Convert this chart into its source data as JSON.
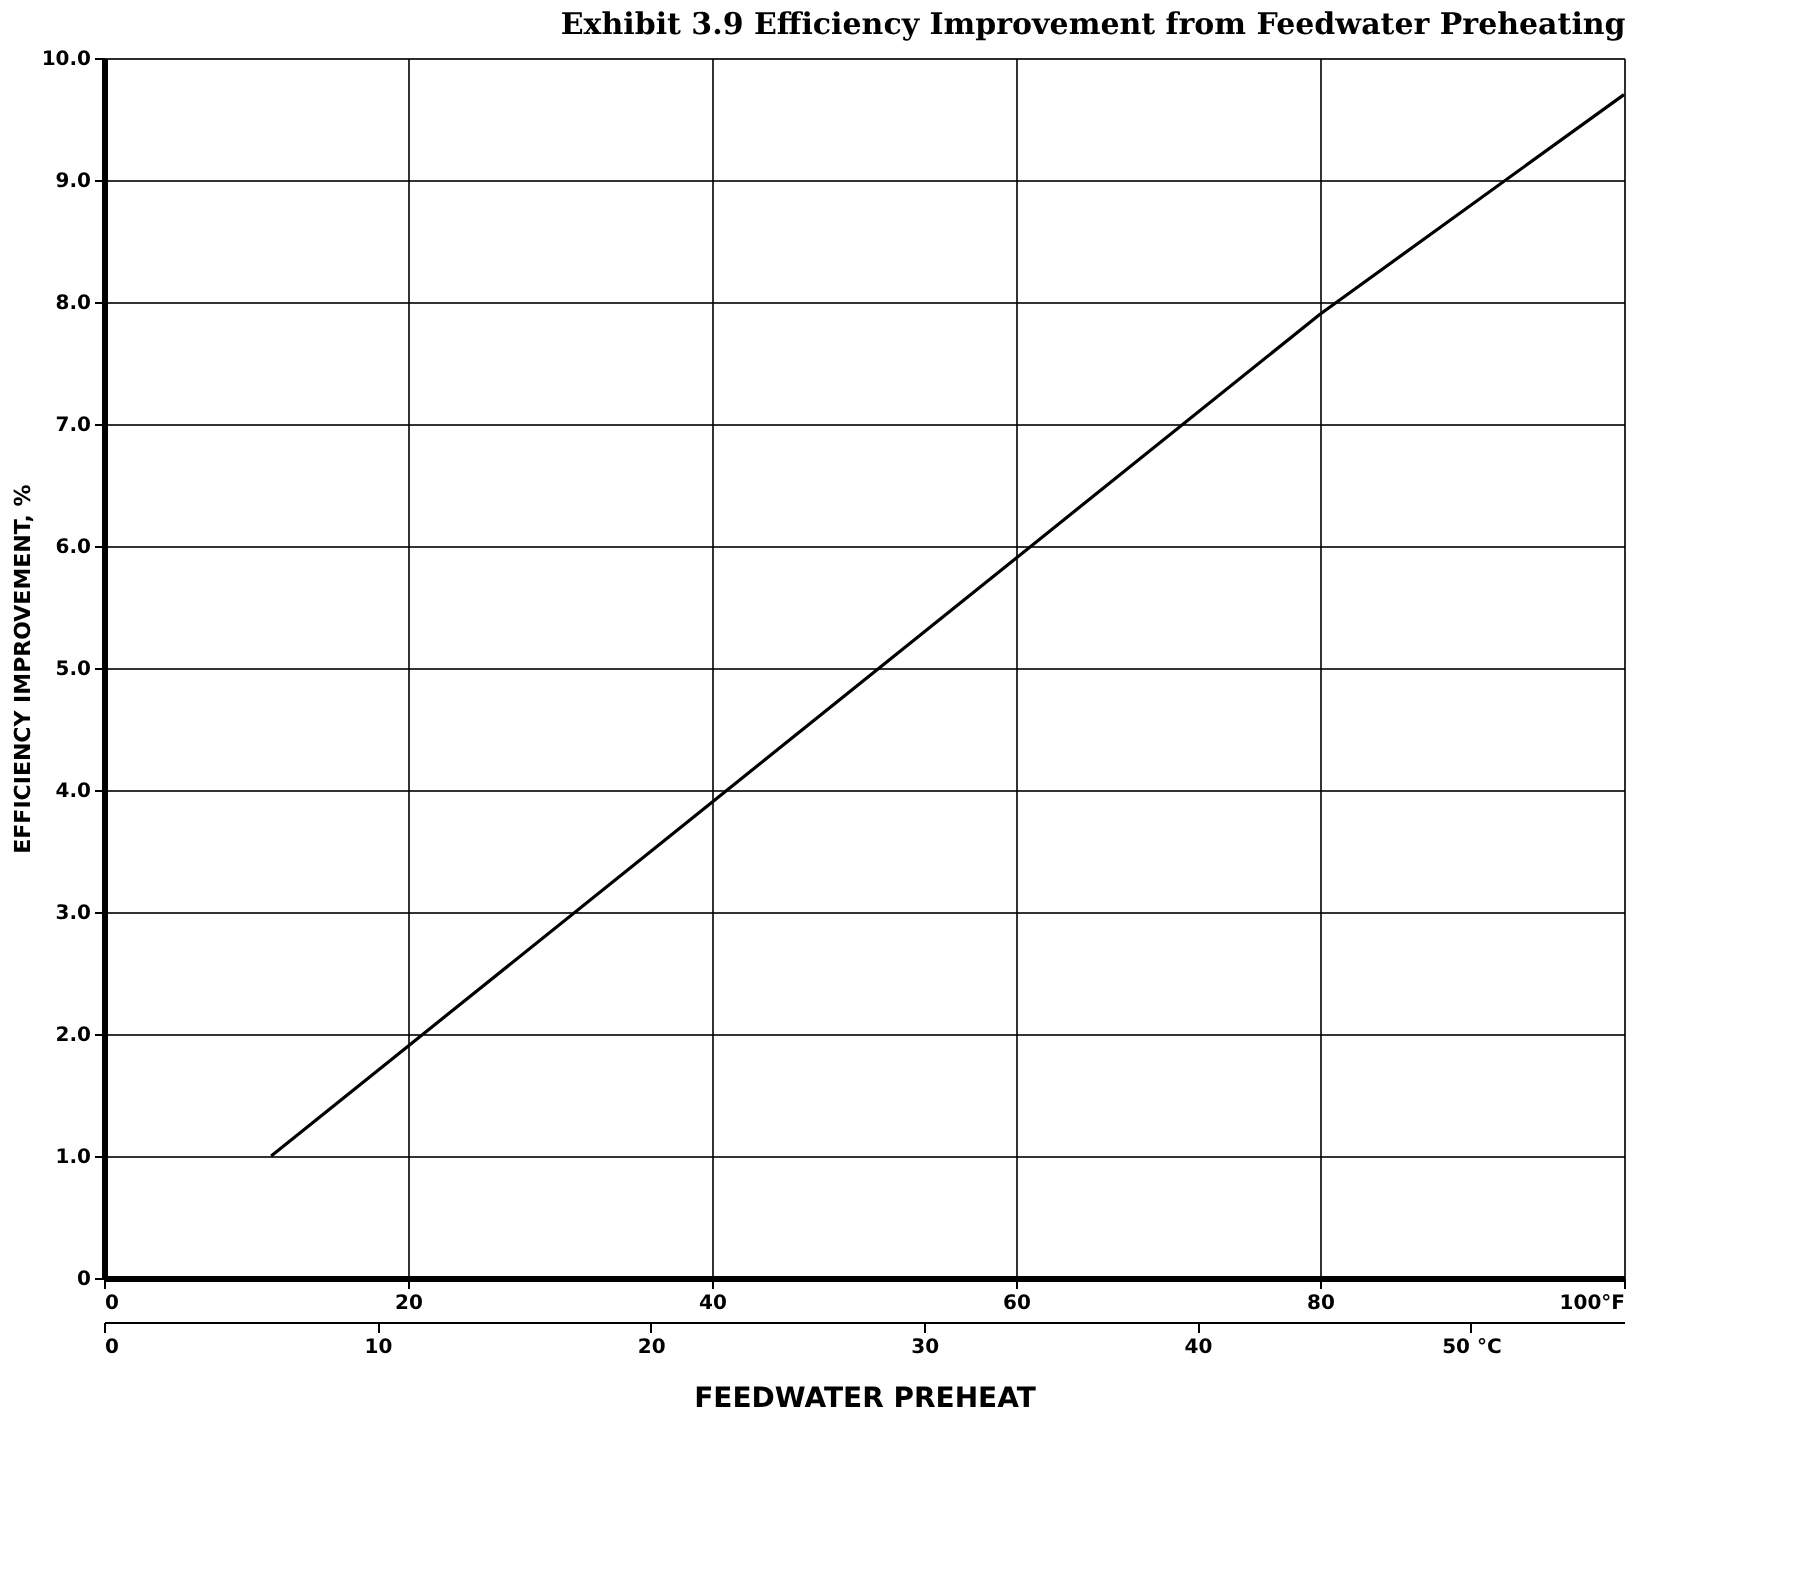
{
  "chart_data": {
    "type": "line",
    "title": "Exhibit 3.9  Efficiency Improvement from Feedwater Preheating",
    "xlabel": "FEEDWATER   PREHEAT",
    "ylabel": "EFFICIENCY  IMPROVEMENT, %",
    "x": [
      11,
      20,
      40,
      60,
      80,
      100
    ],
    "series": [
      {
        "color": "#000000",
        "values": [
          1.0,
          1.9,
          3.9,
          5.9,
          7.9,
          9.7
        ]
      }
    ],
    "xlim": [
      0,
      100
    ],
    "xticks": [
      0,
      20,
      40,
      60,
      80,
      {
        "value": 100,
        "label": "100°F"
      }
    ],
    "x2lim": [
      0,
      55.6
    ],
    "x2ticks": [
      0,
      10,
      20,
      30,
      40,
      {
        "value": 50,
        "label": "50 °C"
      }
    ],
    "ylim": [
      0,
      10
    ],
    "yticks": [
      0,
      {
        "value": 1,
        "label": "1.0"
      },
      {
        "value": 2,
        "label": "2.0"
      },
      {
        "value": 3,
        "label": "3.0"
      },
      {
        "value": 4,
        "label": "4.0"
      },
      {
        "value": 5,
        "label": "5.0"
      },
      {
        "value": 6,
        "label": "6.0"
      },
      {
        "value": 7,
        "label": "7.0"
      },
      {
        "value": 8,
        "label": "8.0"
      },
      {
        "value": 9,
        "label": "9.0"
      },
      {
        "value": 10,
        "label": "10.0"
      }
    ],
    "grid": true,
    "marker": "none",
    "line_style": "solid"
  }
}
